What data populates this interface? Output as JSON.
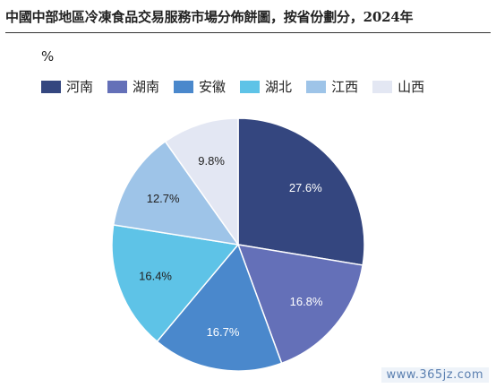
{
  "chart_data": {
    "type": "pie",
    "title": "中國中部地區冷凍食品交易服務市場分佈餅圖，按省份劃分，2024年",
    "unit": "%",
    "legend_position": "top-left",
    "categories": [
      "河南",
      "湖南",
      "安徽",
      "湖北",
      "江西",
      "山西"
    ],
    "values": [
      27.6,
      16.8,
      16.7,
      16.4,
      12.7,
      9.8
    ],
    "labels": [
      "27.6%",
      "16.8%",
      "16.7%",
      "16.4%",
      "12.7%",
      "9.8%"
    ],
    "colors": [
      "#34467f",
      "#6470b8",
      "#4a88cc",
      "#5ec3e7",
      "#9ec4e8",
      "#e3e7f3"
    ],
    "label_colors": [
      "#ffffff",
      "#ffffff",
      "#ffffff",
      "#222222",
      "#222222",
      "#222222"
    ]
  },
  "watermark": "www.365jz.com"
}
